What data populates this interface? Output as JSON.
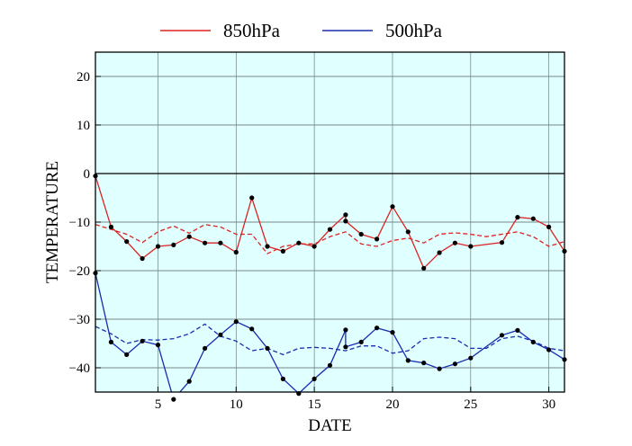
{
  "chart_data": {
    "type": "line",
    "title": "",
    "xlabel": "DATE",
    "ylabel": "TEMPERATURE",
    "xlim": [
      1,
      31
    ],
    "ylim": [
      -45,
      25
    ],
    "xticks": [
      5,
      10,
      15,
      20,
      25,
      30
    ],
    "yticks": [
      20,
      10,
      0,
      -10,
      -20,
      -30,
      -40
    ],
    "grid": true,
    "background_color": "#e0ffff",
    "legend_position": "top",
    "zero_line": 0,
    "series": [
      {
        "name": "850hPa",
        "color": "#dd2222",
        "style": "solid",
        "markers": true,
        "x": [
          1,
          2,
          3,
          4,
          5,
          6,
          7,
          8,
          9,
          10,
          11,
          12,
          13,
          14,
          15,
          16,
          17,
          17,
          18,
          19,
          20,
          21,
          22,
          23,
          24,
          25,
          27,
          28,
          29,
          30,
          31
        ],
        "y": [
          -0.5,
          -11,
          -14,
          -17.5,
          -15,
          -14.7,
          -13,
          -14.3,
          -14.3,
          -16.2,
          -5,
          -15,
          -16,
          -14.3,
          -15,
          -11.5,
          -8.5,
          -9.8,
          -12.5,
          -13.5,
          -6.8,
          -12,
          -19.5,
          -16.3,
          -14.3,
          -15,
          -14.2,
          -9,
          -9.3,
          -11,
          -16
        ]
      },
      {
        "name": "850hPa mean",
        "color": "#dd2222",
        "style": "dashed",
        "markers": false,
        "x": [
          1,
          2,
          3,
          4,
          5,
          6,
          7,
          8,
          9,
          10,
          11,
          12,
          13,
          14,
          15,
          16,
          17,
          18,
          19,
          20,
          21,
          22,
          23,
          24,
          25,
          26,
          27,
          28,
          29,
          30,
          31
        ],
        "y": [
          -10.5,
          -11.5,
          -12.5,
          -14.2,
          -12,
          -10.8,
          -12.3,
          -10.5,
          -11,
          -12.5,
          -12.5,
          -16.5,
          -15,
          -14.5,
          -14.5,
          -13,
          -12,
          -14.5,
          -15,
          -13.8,
          -13.3,
          -14.3,
          -12.5,
          -12.2,
          -12.5,
          -13,
          -12.5,
          -12,
          -13,
          -15,
          -14
        ]
      },
      {
        "name": "500hPa",
        "color": "#1a2cb0",
        "style": "solid",
        "markers": true,
        "x": [
          1,
          2,
          3,
          4,
          5,
          6,
          7,
          8,
          9,
          10,
          11,
          12,
          13,
          14,
          15,
          16,
          17,
          17,
          18,
          19,
          20,
          21,
          22,
          23,
          24,
          25,
          27,
          28,
          29,
          30,
          31
        ],
        "y": [
          -20.5,
          -34.7,
          -37.3,
          -34.5,
          -35.3,
          -46.5,
          -42.8,
          -36,
          -33.2,
          -30.5,
          -32,
          -36,
          -42.3,
          -45.3,
          -42.3,
          -39.5,
          -32.2,
          -35.7,
          -34.7,
          -31.8,
          -32.7,
          -38.5,
          -39,
          -40.2,
          -39.2,
          -38,
          -33.3,
          -32.3,
          -34.7,
          -36.3,
          -38.3
        ]
      },
      {
        "name": "500hPa mean",
        "color": "#1a2cb0",
        "style": "dashed",
        "markers": false,
        "x": [
          1,
          2,
          3,
          4,
          5,
          6,
          7,
          8,
          9,
          10,
          11,
          12,
          13,
          14,
          15,
          16,
          17,
          18,
          19,
          20,
          21,
          22,
          23,
          24,
          25,
          26,
          27,
          28,
          29,
          30,
          31
        ],
        "y": [
          -31.5,
          -33,
          -35,
          -34.2,
          -34.3,
          -34,
          -33,
          -31,
          -33.5,
          -34.5,
          -36.5,
          -36,
          -37.3,
          -36,
          -35.8,
          -36,
          -36.5,
          -35.5,
          -35.5,
          -37,
          -36.5,
          -34,
          -33.7,
          -34,
          -36,
          -36,
          -34,
          -33.5,
          -34.5,
          -36,
          -36.5
        ]
      }
    ],
    "legend": [
      {
        "label": "850hPa",
        "color": "#dd2222"
      },
      {
        "label": "500hPa",
        "color": "#1a2cb0"
      }
    ]
  }
}
